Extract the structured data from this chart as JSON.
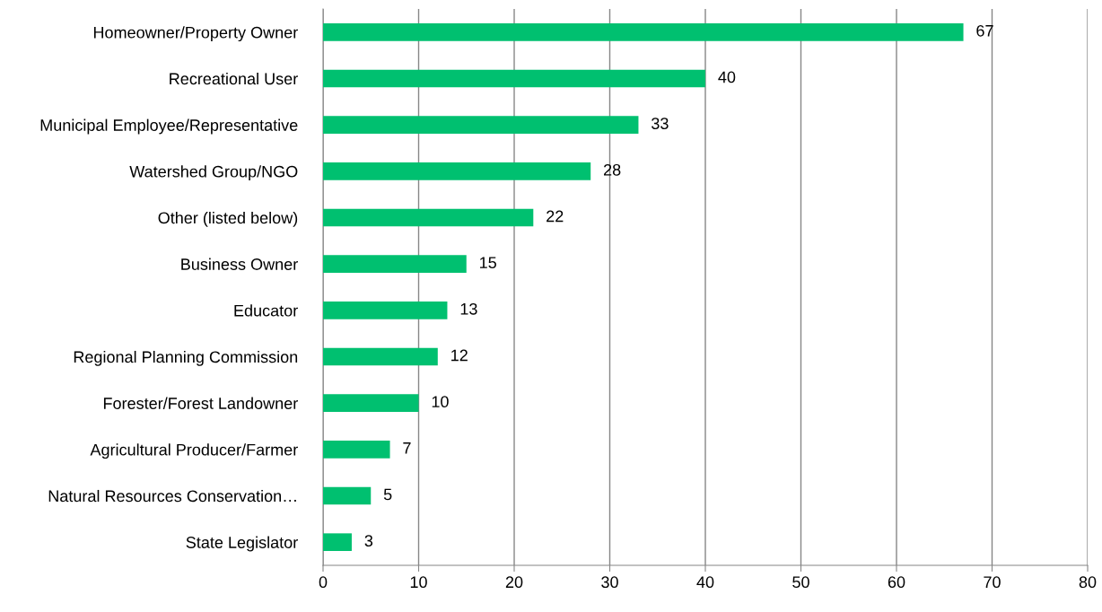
{
  "chart_data": {
    "type": "bar",
    "orientation": "horizontal",
    "categories": [
      "Homeowner/Property Owner",
      "Recreational User",
      "Municipal Employee/Representative",
      "Watershed Group/NGO",
      "Other (listed below)",
      "Business Owner",
      "Educator",
      "Regional Planning Commission",
      "Forester/Forest Landowner",
      "Agricultural Producer/Farmer",
      "Natural Resources Conservation…",
      "State Legislator"
    ],
    "values": [
      67,
      40,
      33,
      28,
      22,
      15,
      13,
      12,
      10,
      7,
      5,
      3
    ],
    "color": "#00c070",
    "xlim": [
      0,
      80
    ],
    "xticks": [
      0,
      10,
      20,
      30,
      40,
      50,
      60,
      70,
      80
    ],
    "grid": "x",
    "data_labels": true
  }
}
